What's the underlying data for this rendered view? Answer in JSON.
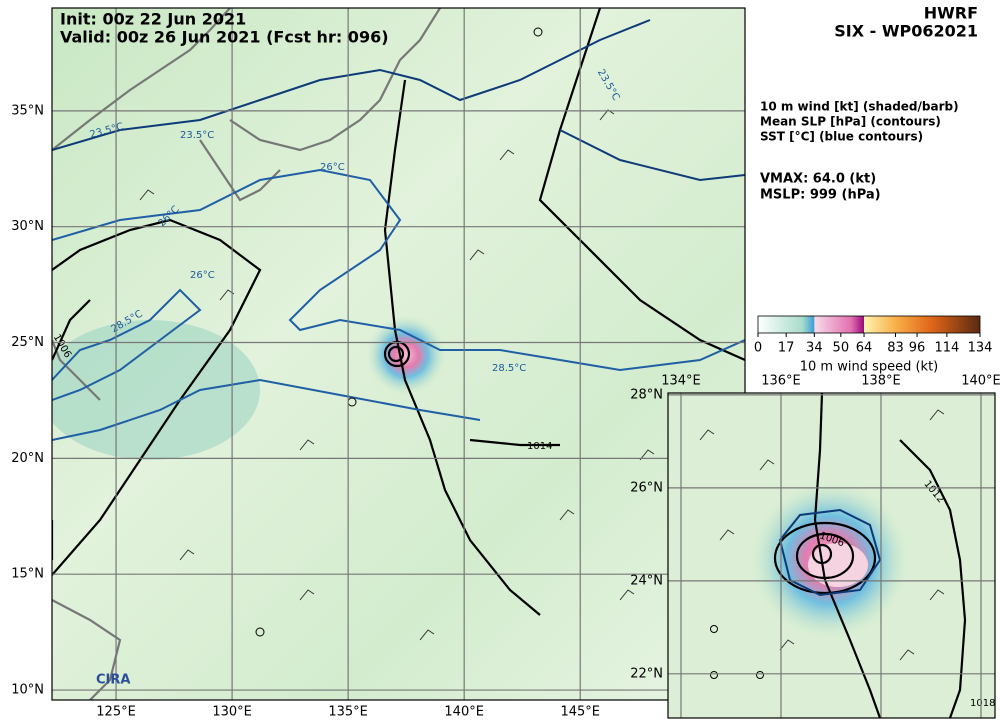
{
  "header": {
    "init": "Init:  00z 22 Jun 2021",
    "valid": "Valid: 00z 26 Jun 2021 (Fcst hr: 096)",
    "model": "HWRF",
    "storm": "SIX - WP062021"
  },
  "legend": {
    "lines": [
      "10 m wind [kt] (shaded/barb)",
      "Mean SLP [hPa] (contours)",
      "SST [°C] (blue contours)"
    ],
    "vmax": "VMAX:  64.0 (kt)",
    "mslp": "MSLP:  999 (hPa)"
  },
  "colorbar": {
    "range": [
      0,
      134
    ],
    "ticks": [
      0,
      17,
      34,
      50,
      64,
      83,
      96,
      114,
      134
    ],
    "label": "10 m wind speed (kt)"
  },
  "main_map": {
    "lon_range": [
      122.24,
      152.1
    ],
    "lat_range": [
      9.57,
      39.44
    ],
    "lon_ticks": [
      {
        "value": 125,
        "label": "125°E"
      },
      {
        "value": 130,
        "label": "130°E"
      },
      {
        "value": 135,
        "label": "135°E"
      },
      {
        "value": 140,
        "label": "140°E"
      },
      {
        "value": 145,
        "label": "145°E"
      }
    ],
    "lat_ticks": [
      {
        "value": 35,
        "label": "35°N"
      },
      {
        "value": 30,
        "label": "30°N"
      },
      {
        "value": 25,
        "label": "25°N"
      },
      {
        "value": 20,
        "label": "20°N"
      },
      {
        "value": 15,
        "label": "15°N"
      },
      {
        "value": 10,
        "label": "10°N"
      }
    ],
    "contour_labels": [
      "23.5°C",
      "23.5°C",
      "23.5°C",
      "26°C",
      "26°C",
      "26°C",
      "28.5°C",
      "28.5°C",
      "1006",
      "1014"
    ]
  },
  "inset_map": {
    "lon_range": [
      133.74,
      140.28
    ],
    "lat_range": [
      21.05,
      28.04
    ],
    "lon_ticks": [
      {
        "value": 134,
        "label": "134°E"
      },
      {
        "value": 136,
        "label": "136°E"
      },
      {
        "value": 138,
        "label": "138°E"
      },
      {
        "value": 140,
        "label": "140°E"
      }
    ],
    "lat_ticks": [
      {
        "value": 28,
        "label": "28°N"
      },
      {
        "value": 26,
        "label": "26°N"
      },
      {
        "value": 24,
        "label": "24°N"
      },
      {
        "value": 22,
        "label": "22°N"
      }
    ],
    "contour_labels": [
      "1006",
      "1012",
      "1018"
    ]
  },
  "logo": "CIRA"
}
